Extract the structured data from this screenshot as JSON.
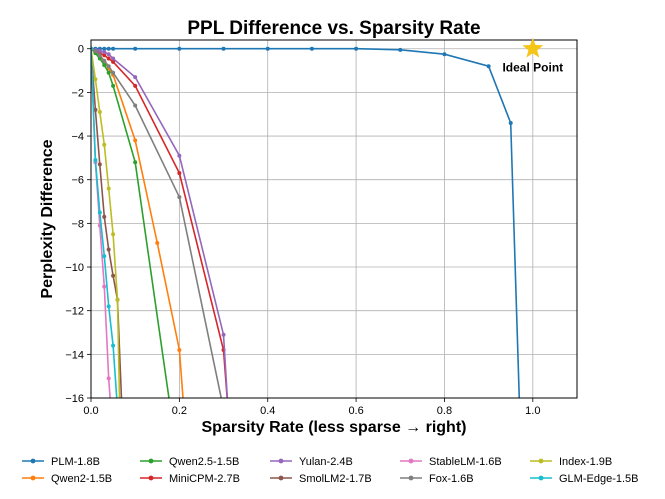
{
  "chart_data": {
    "type": "line",
    "title": "PPL Difference vs. Sparsity Rate",
    "xlabel": "Sparsity Rate (less sparse → right)",
    "ylabel": "Perplexity Difference",
    "xlim": [
      0,
      1.1
    ],
    "ylim": [
      -16,
      0.4
    ],
    "xticks": [
      "0.0",
      "0.2",
      "0.4",
      "0.6",
      "0.8",
      "1.0"
    ],
    "yticks": [
      "0",
      "−2",
      "−4",
      "−6",
      "−8",
      "−10",
      "−12",
      "−14",
      "−16"
    ],
    "grid": true,
    "legend_position": "bottom",
    "annotation": {
      "text": "Ideal Point",
      "x": 1.0,
      "y": 0,
      "marker": "star",
      "color": "#f5c518"
    },
    "series": [
      {
        "name": "PLM-1.8B",
        "color": "#1f77b4",
        "x": [
          0,
          0.01,
          0.02,
          0.03,
          0.04,
          0.05,
          0.1,
          0.2,
          0.3,
          0.4,
          0.5,
          0.6,
          0.7,
          0.8,
          0.9,
          0.95,
          0.97
        ],
        "y": [
          0,
          0,
          0,
          0,
          0,
          0,
          0,
          0,
          0,
          0,
          0,
          0,
          -0.05,
          -0.25,
          -0.8,
          -3.4,
          -16.5
        ]
      },
      {
        "name": "Qwen2-1.5B",
        "color": "#ff7f0e",
        "x": [
          0,
          0.01,
          0.02,
          0.03,
          0.04,
          0.05,
          0.1,
          0.15,
          0.2,
          0.21
        ],
        "y": [
          0,
          -0.15,
          -0.35,
          -0.6,
          -0.9,
          -1.2,
          -4.2,
          -8.9,
          -13.8,
          -16.5
        ]
      },
      {
        "name": "Qwen2.5-1.5B",
        "color": "#2ca02c",
        "x": [
          0,
          0.01,
          0.02,
          0.03,
          0.04,
          0.05,
          0.1,
          0.18
        ],
        "y": [
          0,
          -0.2,
          -0.45,
          -0.75,
          -1.1,
          -1.7,
          -5.2,
          -16.5
        ]
      },
      {
        "name": "MiniCPM-2.7B",
        "color": "#d62728",
        "x": [
          0,
          0.01,
          0.02,
          0.03,
          0.04,
          0.05,
          0.1,
          0.2,
          0.3,
          0.31
        ],
        "y": [
          0,
          -0.1,
          -0.2,
          -0.3,
          -0.45,
          -0.6,
          -1.7,
          -5.7,
          -13.8,
          -16.5
        ]
      },
      {
        "name": "Yulan-2.4B",
        "color": "#9467bd",
        "x": [
          0,
          0.01,
          0.02,
          0.03,
          0.04,
          0.05,
          0.1,
          0.2,
          0.3,
          0.31
        ],
        "y": [
          0,
          -0.05,
          -0.1,
          -0.15,
          -0.25,
          -0.45,
          -1.3,
          -4.9,
          -13.1,
          -16.5
        ]
      },
      {
        "name": "SmolLM2-1.7B",
        "color": "#8c564b",
        "x": [
          0,
          0.01,
          0.02,
          0.03,
          0.04,
          0.05,
          0.06,
          0.07
        ],
        "y": [
          0,
          -2.8,
          -5.3,
          -7.7,
          -9.2,
          -10.4,
          -11.5,
          -16.5
        ]
      },
      {
        "name": "StableLM-1.6B",
        "color": "#e377c2",
        "x": [
          0,
          0.01,
          0.02,
          0.03,
          0.04,
          0.045
        ],
        "y": [
          0,
          -5.2,
          -8.1,
          -10.9,
          -15.1,
          -16.5
        ]
      },
      {
        "name": "Fox-1.6B",
        "color": "#7f7f7f",
        "x": [
          0,
          0.01,
          0.02,
          0.03,
          0.04,
          0.05,
          0.1,
          0.2,
          0.3
        ],
        "y": [
          0,
          -0.1,
          -0.3,
          -0.55,
          -0.8,
          -1.1,
          -2.6,
          -6.8,
          -16.5
        ]
      },
      {
        "name": "Index-1.9B",
        "color": "#bcbd22",
        "x": [
          0,
          0.01,
          0.02,
          0.03,
          0.04,
          0.05,
          0.06,
          0.065
        ],
        "y": [
          0,
          -1.4,
          -2.9,
          -4.4,
          -6.4,
          -8.5,
          -11.5,
          -16.5
        ]
      },
      {
        "name": "GLM-Edge-1.5B",
        "color": "#17becf",
        "x": [
          0,
          0.01,
          0.02,
          0.03,
          0.04,
          0.05,
          0.06
        ],
        "y": [
          0,
          -5.1,
          -7.5,
          -9.5,
          -11.8,
          -13.6,
          -16.5
        ]
      }
    ]
  }
}
